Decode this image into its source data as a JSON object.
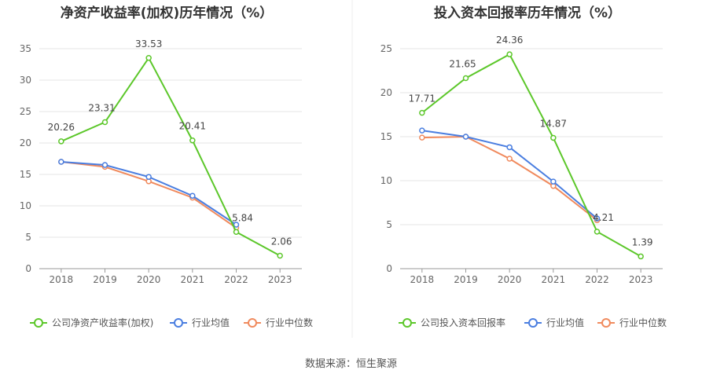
{
  "source": "数据来源：恒生聚源",
  "chart_data": [
    {
      "type": "line",
      "title": "净资产收益率(加权)历年情况（%）",
      "categories": [
        "2018",
        "2019",
        "2020",
        "2021",
        "2022",
        "2023"
      ],
      "ylim": [
        0,
        35
      ],
      "yticks": [
        0,
        5,
        10,
        15,
        20,
        25,
        30,
        35
      ],
      "grid": true,
      "legend_position": "bottom",
      "series": [
        {
          "name": "公司净资产收益率(加权)",
          "color": "#5cc72a",
          "values": [
            20.26,
            23.31,
            33.53,
            20.41,
            5.84,
            2.06
          ],
          "labels": [
            "20.26",
            "23.31",
            "33.53",
            "20.41",
            "5.84",
            "2.06"
          ]
        },
        {
          "name": "行业均值",
          "color": "#4a7ee0",
          "values": [
            17.0,
            16.5,
            14.6,
            11.6,
            7.0,
            null
          ]
        },
        {
          "name": "行业中位数",
          "color": "#f08a5d",
          "values": [
            17.0,
            16.2,
            13.9,
            11.3,
            6.5,
            null
          ]
        }
      ]
    },
    {
      "type": "line",
      "title": "投入资本回报率历年情况（%）",
      "categories": [
        "2018",
        "2019",
        "2020",
        "2021",
        "2022",
        "2023"
      ],
      "ylim": [
        0,
        25
      ],
      "yticks": [
        0,
        5,
        10,
        15,
        20,
        25
      ],
      "grid": true,
      "legend_position": "bottom",
      "series": [
        {
          "name": "公司投入资本回报率",
          "color": "#5cc72a",
          "values": [
            17.71,
            21.65,
            24.36,
            14.87,
            4.21,
            1.39
          ],
          "labels": [
            "17.71",
            "21.65",
            "24.36",
            "14.87",
            "4.21",
            "1.39"
          ]
        },
        {
          "name": "行业均值",
          "color": "#4a7ee0",
          "values": [
            15.7,
            15.0,
            13.8,
            9.9,
            5.7,
            null
          ]
        },
        {
          "name": "行业中位数",
          "color": "#f08a5d",
          "values": [
            14.9,
            15.0,
            12.5,
            9.4,
            5.5,
            null
          ]
        }
      ]
    }
  ]
}
